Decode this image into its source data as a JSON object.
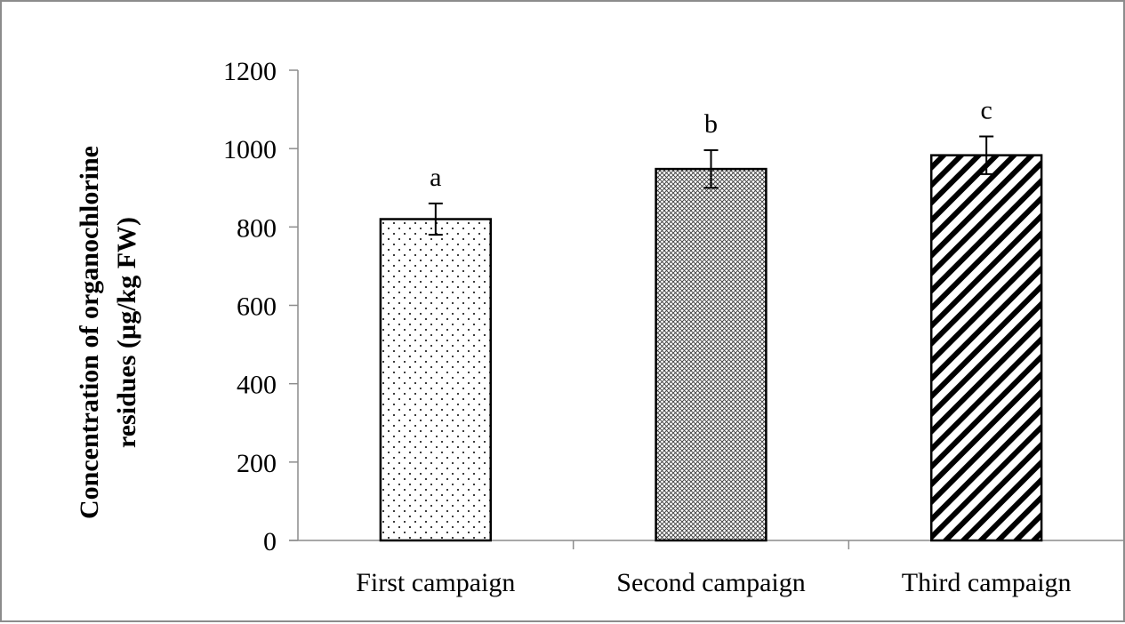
{
  "chart_data": {
    "type": "bar",
    "categories": [
      "First campaign",
      "Second campaign",
      "Third campaign"
    ],
    "values": [
      820,
      948,
      983
    ],
    "errors": [
      40,
      48,
      48
    ],
    "significance_letters": [
      "a",
      "b",
      "c"
    ],
    "fill_patterns": [
      "dots",
      "crosshatch",
      "diagonal-stripes"
    ],
    "title": "",
    "xlabel": "",
    "ylabel_lines": [
      "Concentration of organochlorine",
      "residues (µg/kg  FW)"
    ],
    "ylim": [
      0,
      1200
    ],
    "yticks": [
      0,
      200,
      400,
      600,
      800,
      1000,
      1200
    ],
    "grid": false,
    "legend": "none",
    "colors": {
      "bar_edge": "#000000",
      "pattern": "#000000",
      "background": "#ffffff",
      "frame": "#8c8c8c"
    }
  }
}
